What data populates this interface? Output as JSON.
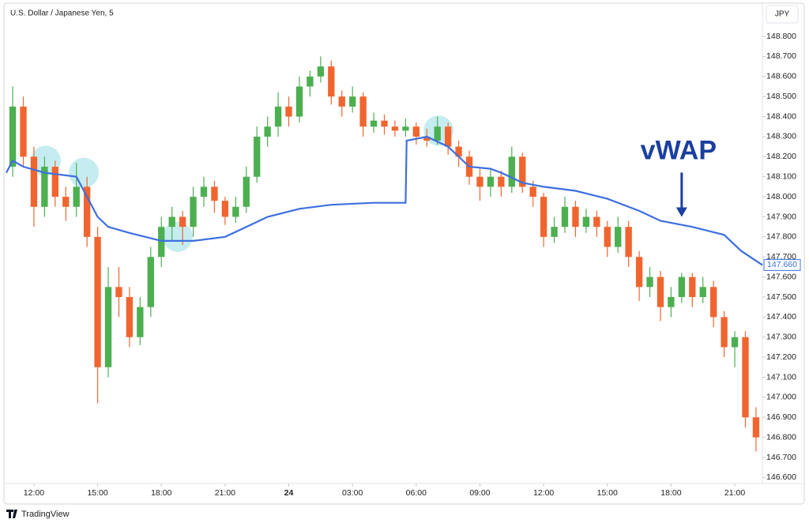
{
  "chart_data": {
    "type": "candlestick",
    "title": "U.S. Dollar / Japanese Yen, 5",
    "currency": "JPY",
    "up_color": "#4caf50",
    "down_color": "#f0652f",
    "x": [
      11.0,
      11.5,
      12.0,
      12.5,
      13.0,
      13.5,
      14.0,
      14.5,
      15.0,
      15.5,
      16.0,
      16.5,
      17.0,
      17.5,
      18.0,
      18.5,
      19.0,
      19.5,
      20.0,
      20.5,
      21.0,
      21.5,
      22.0,
      22.5,
      23.0,
      23.5,
      24.0,
      24.5,
      25.0,
      25.5,
      26.0,
      26.5,
      27.0,
      27.5,
      28.0,
      28.5,
      29.0,
      29.5,
      30.0,
      30.5,
      31.0,
      31.5,
      32.0,
      32.5,
      33.0,
      33.5,
      34.0,
      34.5,
      35.0,
      35.5,
      36.0,
      36.5,
      37.0,
      37.5,
      38.0,
      38.5,
      39.0,
      39.5,
      40.0,
      40.5,
      41.0,
      41.5,
      42.0,
      42.5,
      43.0,
      43.5,
      44.0,
      44.5,
      45.0,
      45.5,
      46.0
    ],
    "open": [
      148.15,
      148.45,
      148.2,
      147.95,
      148.15,
      148.0,
      147.95,
      148.05,
      147.8,
      147.15,
      147.55,
      147.5,
      147.3,
      147.45,
      147.7,
      147.85,
      147.9,
      147.85,
      148.0,
      148.05,
      147.98,
      147.9,
      147.95,
      148.1,
      148.3,
      148.35,
      148.45,
      148.4,
      148.55,
      148.6,
      148.65,
      148.5,
      148.45,
      148.5,
      148.35,
      148.38,
      148.35,
      148.33,
      148.35,
      148.3,
      148.28,
      148.35,
      148.25,
      148.2,
      148.1,
      148.05,
      148.1,
      148.05,
      148.2,
      148.05,
      148.0,
      147.8,
      147.85,
      147.95,
      147.85,
      147.9,
      147.85,
      147.75,
      147.85,
      147.7,
      147.55,
      147.6,
      147.45,
      147.5,
      147.6,
      147.5,
      147.55,
      147.4,
      147.25,
      147.3,
      146.9
    ],
    "high": [
      148.55,
      148.5,
      148.25,
      148.2,
      148.18,
      148.05,
      148.17,
      148.1,
      147.85,
      147.65,
      147.65,
      147.55,
      147.5,
      147.75,
      147.9,
      147.95,
      147.93,
      148.05,
      148.1,
      148.08,
      148.0,
      148.0,
      148.15,
      148.35,
      148.4,
      148.52,
      148.5,
      148.6,
      148.63,
      148.7,
      148.68,
      148.53,
      148.55,
      148.52,
      148.42,
      148.41,
      148.38,
      148.39,
      148.37,
      148.34,
      148.4,
      148.37,
      148.28,
      148.23,
      148.14,
      148.14,
      148.13,
      148.25,
      148.22,
      148.08,
      148.02,
      147.9,
      148.0,
      147.98,
      147.94,
      147.93,
      147.88,
      147.9,
      147.88,
      147.73,
      147.65,
      147.63,
      147.55,
      147.62,
      147.62,
      147.6,
      147.58,
      147.43,
      147.33,
      147.33,
      146.95
    ],
    "low": [
      148.1,
      148.15,
      147.85,
      147.9,
      147.95,
      147.88,
      147.9,
      147.75,
      146.97,
      147.1,
      147.4,
      147.25,
      147.26,
      147.4,
      147.65,
      147.78,
      147.76,
      147.8,
      147.95,
      147.92,
      147.86,
      147.87,
      147.92,
      148.07,
      148.25,
      148.3,
      148.35,
      148.37,
      148.5,
      148.57,
      148.46,
      148.4,
      148.42,
      148.3,
      148.32,
      148.31,
      148.3,
      148.3,
      148.26,
      148.25,
      148.26,
      148.21,
      148.15,
      148.06,
      147.98,
      148.0,
      148.0,
      148.02,
      148.02,
      147.95,
      147.75,
      147.77,
      147.82,
      147.8,
      147.82,
      147.8,
      147.7,
      147.72,
      147.65,
      147.48,
      147.5,
      147.38,
      147.4,
      147.47,
      147.45,
      147.47,
      147.35,
      147.2,
      147.15,
      146.85,
      146.73
    ],
    "close": [
      148.45,
      148.2,
      147.95,
      148.15,
      148.0,
      147.95,
      148.05,
      147.8,
      147.15,
      147.55,
      147.5,
      147.3,
      147.45,
      147.7,
      147.85,
      147.9,
      147.85,
      148.0,
      148.05,
      147.98,
      147.9,
      147.95,
      148.1,
      148.3,
      148.35,
      148.45,
      148.4,
      148.55,
      148.6,
      148.65,
      148.5,
      148.45,
      148.5,
      148.35,
      148.38,
      148.35,
      148.33,
      148.35,
      148.3,
      148.28,
      148.35,
      148.25,
      148.2,
      148.1,
      148.05,
      148.1,
      148.05,
      148.2,
      148.05,
      148.0,
      147.8,
      147.85,
      147.95,
      147.85,
      147.9,
      147.85,
      147.75,
      147.85,
      147.7,
      147.55,
      147.6,
      147.45,
      147.5,
      147.6,
      147.5,
      147.55,
      147.4,
      147.25,
      147.3,
      146.9,
      146.8
    ],
    "vwap": {
      "color": "#3d6fe0",
      "x": [
        10.7,
        11.0,
        11.5,
        12.5,
        14.0,
        14.5,
        15.0,
        15.5,
        16.5,
        18.0,
        19.5,
        21.0,
        22.0,
        23.0,
        24.5,
        26.0,
        28.0,
        29.5,
        29.55,
        30.5,
        31.5,
        32.5,
        33.5,
        34.0,
        35.0,
        36.0,
        37.5,
        39.0,
        40.5,
        41.5,
        43.0,
        44.5,
        45.3,
        46.3
      ],
      "values": [
        148.12,
        148.18,
        148.15,
        148.12,
        148.1,
        148.0,
        147.9,
        147.85,
        147.82,
        147.78,
        147.78,
        147.8,
        147.85,
        147.9,
        147.94,
        147.96,
        147.97,
        147.97,
        148.28,
        148.3,
        148.25,
        148.15,
        148.14,
        148.12,
        148.07,
        148.05,
        148.03,
        147.99,
        147.93,
        147.88,
        147.85,
        147.81,
        147.73,
        147.66
      ],
      "price_label": {
        "value": 147.66,
        "label": "147.660"
      }
    },
    "annotation": {
      "text": "vWAP",
      "x": 42.5,
      "y": 147.9
    },
    "highlights": [
      {
        "x": 12.56,
        "y": 148.18
      },
      {
        "x": 14.35,
        "y": 148.12
      },
      {
        "x": 18.77,
        "y": 147.8
      },
      {
        "x": 31.05,
        "y": 148.33
      }
    ],
    "xlim": [
      10.7,
      46.3
    ],
    "ylim": [
      146.57,
      148.95
    ],
    "xticks": [
      {
        "value": 12,
        "label": "12:00"
      },
      {
        "value": 15,
        "label": "15:00"
      },
      {
        "value": 18,
        "label": "18:00"
      },
      {
        "value": 21,
        "label": "21:00"
      },
      24,
      {
        "value": 27,
        "label": "03:00"
      },
      {
        "value": 30,
        "label": "06:00"
      },
      {
        "value": 33,
        "label": "09:00"
      },
      {
        "value": 36,
        "label": "12:00"
      },
      {
        "value": 39,
        "label": "15:00"
      },
      {
        "value": 42,
        "label": "18:00"
      },
      {
        "value": 45,
        "label": "21:00"
      }
    ],
    "yticks": [
      {
        "value": 146.6,
        "label": "146.600"
      },
      {
        "value": 146.7,
        "label": "146.700"
      },
      {
        "value": 146.8,
        "label": "146.800"
      },
      {
        "value": 146.9,
        "label": "146.900"
      },
      {
        "value": 147.0,
        "label": "147.000"
      },
      {
        "value": 147.1,
        "label": "147.100"
      },
      {
        "value": 147.2,
        "label": "147.200"
      },
      {
        "value": 147.3,
        "label": "147.300"
      },
      {
        "value": 147.4,
        "label": "147.400"
      },
      {
        "value": 147.5,
        "label": "147.500"
      },
      {
        "value": 147.6,
        "label": "147.600"
      },
      {
        "value": 147.7,
        "label": "147.700"
      },
      {
        "value": 147.8,
        "label": "147.800"
      },
      {
        "value": 147.9,
        "label": "147.900"
      },
      {
        "value": 148.0,
        "label": "148.000"
      },
      {
        "value": 148.1,
        "label": "148.100"
      },
      {
        "value": 148.2,
        "label": "148.200"
      },
      {
        "value": 148.3,
        "label": "148.300"
      },
      {
        "value": 148.4,
        "label": "148.400"
      },
      {
        "value": 148.5,
        "label": "148.500"
      },
      {
        "value": 148.6,
        "label": "148.600"
      },
      {
        "value": 148.7,
        "label": "148.700"
      },
      {
        "value": 148.8,
        "label": "148.800"
      }
    ]
  },
  "footer": {
    "brand": "TradingView"
  }
}
